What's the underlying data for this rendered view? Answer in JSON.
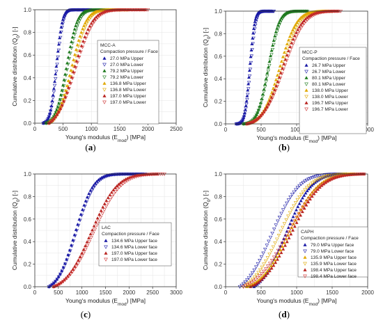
{
  "chart_data": [
    {
      "type": "scatter",
      "panel_label": "(a)",
      "xlabel": "Young's modulus (E",
      "xlabel_sub": "mod",
      "xlabel_unit": ") [MPa]",
      "ylabel": "Cumulative distribution (Q",
      "ylabel_sub": "0",
      "ylabel_unit": ") [-]",
      "xlim": [
        0,
        2500
      ],
      "ylim": [
        0,
        1
      ],
      "xticks": [
        0,
        500,
        1000,
        1500,
        2000,
        2500
      ],
      "yticks": [
        0.0,
        0.2,
        0.4,
        0.6,
        0.8,
        1.0
      ],
      "grid": true,
      "legend_position": "right",
      "legend_title_lines": [
        "MCC-A",
        "Compaction pressure / Face"
      ],
      "series": [
        {
          "name": "27.0 MPa Upper",
          "color": "#1a1aa6",
          "marker": "triangle-up-filled",
          "mu": 380,
          "sigma": 85,
          "xmin": 150,
          "xmax": 1000
        },
        {
          "name": "27.0 MPa Lower",
          "color": "#1a1aa6",
          "marker": "triangle-down-open",
          "mu": 390,
          "sigma": 90,
          "xmin": 150,
          "xmax": 1000
        },
        {
          "name": "79.2 MPa Upper",
          "color": "#1e7a1e",
          "marker": "triangle-up-filled",
          "mu": 560,
          "sigma": 150,
          "xmin": 200,
          "xmax": 1300
        },
        {
          "name": "79.2 MPa Lower",
          "color": "#1e7a1e",
          "marker": "triangle-down-open",
          "mu": 580,
          "sigma": 160,
          "xmin": 200,
          "xmax": 1350
        },
        {
          "name": "136.8 MPa Upper",
          "color": "#e0a800",
          "marker": "triangle-up-filled",
          "mu": 650,
          "sigma": 200,
          "xmin": 250,
          "xmax": 1600
        },
        {
          "name": "136.8 MPa Lower",
          "color": "#e0a800",
          "marker": "triangle-down-open",
          "mu": 670,
          "sigma": 210,
          "xmin": 250,
          "xmax": 1650
        },
        {
          "name": "197.0 MPa Upper",
          "color": "#b8231f",
          "marker": "triangle-up-filled",
          "mu": 700,
          "sigma": 250,
          "xmin": 250,
          "xmax": 1950
        },
        {
          "name": "197.0 MPa Lower",
          "color": "#cc2f2f",
          "marker": "triangle-down-open",
          "mu": 720,
          "sigma": 260,
          "xmin": 250,
          "xmax": 2000
        }
      ]
    },
    {
      "type": "scatter",
      "panel_label": "(b)",
      "xlabel": "Young's modulus (E",
      "xlabel_sub": "mod",
      "xlabel_unit": ") [MPa]",
      "ylabel": "Cumulative distribution (Q",
      "ylabel_sub": "0",
      "ylabel_unit": ") [-]",
      "xlim": [
        0,
        2000
      ],
      "ylim": [
        0,
        1
      ],
      "xticks": [
        0,
        500,
        1000,
        1500,
        2000
      ],
      "yticks": [
        0.0,
        0.2,
        0.4,
        0.6,
        0.8,
        1.0
      ],
      "grid": true,
      "legend_position": "right",
      "legend_title_lines": [
        "MCC-P",
        "Compaction pressure / Face"
      ],
      "series": [
        {
          "name": "26.7 MPa Upper",
          "color": "#1a1aa6",
          "marker": "triangle-up-filled",
          "mu": 340,
          "sigma": 55,
          "xmin": 150,
          "xmax": 650
        },
        {
          "name": "26.7 MPa Lower",
          "color": "#1a1aa6",
          "marker": "triangle-down-open",
          "mu": 350,
          "sigma": 60,
          "xmin": 150,
          "xmax": 680
        },
        {
          "name": "80.1 MPa Upper",
          "color": "#1e7a1e",
          "marker": "triangle-up-filled",
          "mu": 600,
          "sigma": 120,
          "xmin": 250,
          "xmax": 1150
        },
        {
          "name": "80.1 MPa Lower",
          "color": "#1e7a1e",
          "marker": "triangle-down-open",
          "mu": 610,
          "sigma": 125,
          "xmin": 250,
          "xmax": 1150
        },
        {
          "name": "138.0 MPa Upper",
          "color": "#e0a800",
          "marker": "triangle-up-filled",
          "mu": 760,
          "sigma": 190,
          "xmin": 300,
          "xmax": 1450
        },
        {
          "name": "138.0 MPa Lower",
          "color": "#e0a800",
          "marker": "triangle-down-open",
          "mu": 780,
          "sigma": 200,
          "xmin": 300,
          "xmax": 1500
        },
        {
          "name": "196.7 MPa Upper",
          "color": "#b8231f",
          "marker": "triangle-up-filled",
          "mu": 800,
          "sigma": 220,
          "xmin": 300,
          "xmax": 1580
        },
        {
          "name": "196.7 MPa Lower",
          "color": "#cc2f2f",
          "marker": "triangle-down-open",
          "mu": 820,
          "sigma": 230,
          "xmin": 300,
          "xmax": 1620
        }
      ]
    },
    {
      "type": "scatter",
      "panel_label": "(c)",
      "xlabel": "Young's modulus (E",
      "xlabel_sub": "mod",
      "xlabel_unit": ") [MPa]",
      "ylabel": "Cumulative distribution (Q",
      "ylabel_sub": "0",
      "ylabel_unit": ") [-]",
      "xlim": [
        0,
        3000
      ],
      "ylim": [
        0,
        1
      ],
      "xticks": [
        0,
        500,
        1000,
        1500,
        2000,
        2500,
        3000
      ],
      "yticks": [
        0.0,
        0.2,
        0.4,
        0.6,
        0.8,
        1.0
      ],
      "grid": true,
      "legend_position": "bottom-left",
      "legend_title_lines": [
        "LAC",
        "Compaction pressure / Face"
      ],
      "series": [
        {
          "name": "134.6 MPa Upper face",
          "color": "#1a1aa6",
          "marker": "triangle-up-filled",
          "mu": 860,
          "sigma": 300,
          "xmin": 300,
          "xmax": 2300
        },
        {
          "name": "134.6 MPa Lower face",
          "color": "#1a1aa6",
          "marker": "triangle-down-open",
          "mu": 880,
          "sigma": 310,
          "xmin": 300,
          "xmax": 2350
        },
        {
          "name": "197.0 MPa Upper face",
          "color": "#b8231f",
          "marker": "triangle-up-filled",
          "mu": 1200,
          "sigma": 430,
          "xmin": 400,
          "xmax": 2600
        },
        {
          "name": "197.0 MPa Lower face",
          "color": "#cc2f2f",
          "marker": "triangle-down-open",
          "mu": 1250,
          "sigma": 450,
          "xmin": 400,
          "xmax": 2750
        }
      ]
    },
    {
      "type": "scatter",
      "panel_label": "(d)",
      "xlabel": "Young's modulus (E",
      "xlabel_sub": "mod",
      "xlabel_unit": ") [MPa]",
      "ylabel": "Cumulative distribution (Q",
      "ylabel_sub": "0",
      "ylabel_unit": ") [-]",
      "xlim": [
        0,
        2000
      ],
      "ylim": [
        0,
        1
      ],
      "xticks": [
        0,
        500,
        1000,
        1500,
        2000
      ],
      "yticks": [
        0.0,
        0.2,
        0.4,
        0.6,
        0.8,
        1.0
      ],
      "grid": true,
      "legend_position": "bottom-right",
      "legend_title_lines": [
        "CAPH",
        "Compaction pressure / Face"
      ],
      "series": [
        {
          "name": "79.0 MPa Upper face",
          "color": "#1a1aa6",
          "marker": "triangle-up-filled",
          "mu": 850,
          "sigma": 280,
          "xmin": 400,
          "xmax": 1700
        },
        {
          "name": "79.0 MPa Lower face",
          "color": "#1a1aa6",
          "marker": "triangle-down-open",
          "mu": 650,
          "sigma": 300,
          "xmin": 200,
          "xmax": 1700
        },
        {
          "name": "135.9 MPa Upper face",
          "color": "#e0a800",
          "marker": "triangle-up-filled",
          "mu": 900,
          "sigma": 320,
          "xmin": 300,
          "xmax": 1850
        },
        {
          "name": "135.9 MPa Lower face",
          "color": "#e0a800",
          "marker": "triangle-down-open",
          "mu": 760,
          "sigma": 320,
          "xmin": 250,
          "xmax": 1800
        },
        {
          "name": "198.4 MPa Upper face",
          "color": "#b8231f",
          "marker": "triangle-up-filled",
          "mu": 930,
          "sigma": 330,
          "xmin": 350,
          "xmax": 1950
        },
        {
          "name": "198.4 MPa Lower face",
          "color": "#cc2f2f",
          "marker": "triangle-down-open",
          "mu": 880,
          "sigma": 360,
          "xmin": 250,
          "xmax": 1950
        }
      ]
    }
  ]
}
